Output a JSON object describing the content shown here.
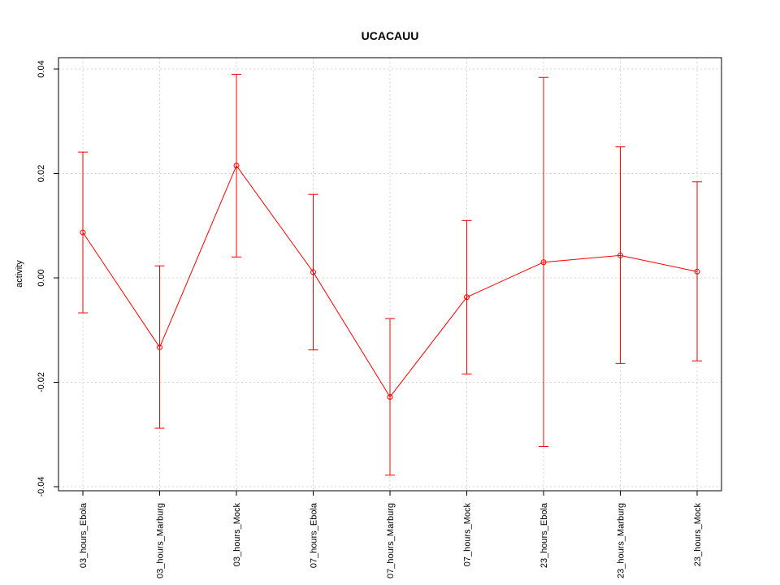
{
  "chart_data": {
    "type": "line",
    "title": "UCACAUU",
    "xlabel": "",
    "ylabel": "activity",
    "categories": [
      "03_hours_Ebola",
      "03_hours_Marburg",
      "03_hours_Mock",
      "07_hours_Ebola",
      "07_hours_Marburg",
      "07_hours_Mock",
      "23_hours_Ebola",
      "23_hours_Marburg",
      "23_hours_Mock"
    ],
    "series": [
      {
        "values": [
          0.0087,
          -0.0133,
          0.0215,
          0.0011,
          -0.0228,
          -0.0037,
          0.003,
          0.0043,
          0.0012
        ],
        "lower": [
          -0.0067,
          -0.0288,
          0.004,
          -0.0138,
          -0.0378,
          -0.0184,
          -0.0323,
          -0.0164,
          -0.0159
        ],
        "upper": [
          0.0241,
          0.0023,
          0.039,
          0.016,
          -0.0078,
          0.011,
          0.0384,
          0.0251,
          0.0184
        ]
      }
    ],
    "ylim": [
      -0.04,
      0.04
    ],
    "yticks": [
      "-0.04",
      "-0.02",
      "0.00",
      "0.02",
      "0.04"
    ],
    "grid": true,
    "colors": {
      "series": "#ff0000",
      "grid": "#d3d3d3",
      "axis": "#000000"
    }
  }
}
